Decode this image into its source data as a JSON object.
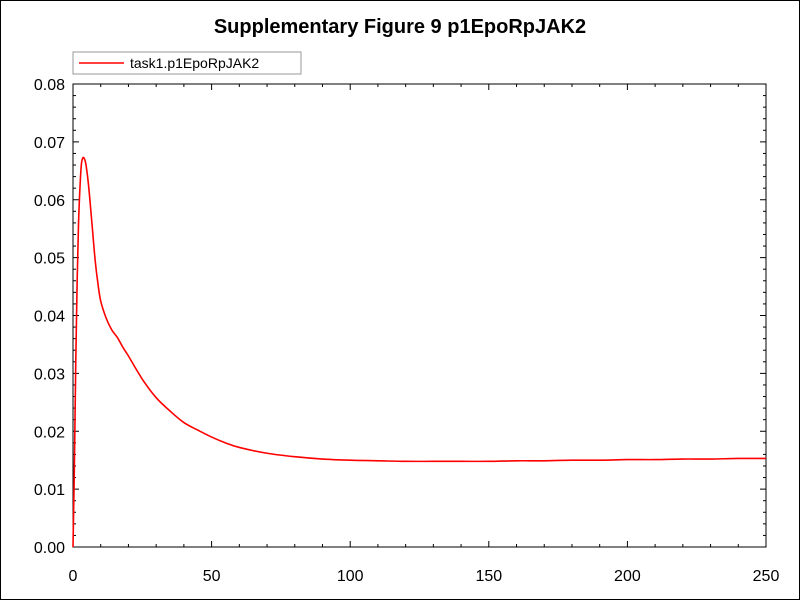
{
  "chart_data": {
    "type": "line",
    "title": "Supplementary Figure 9 p1EpoRpJAK2",
    "xlabel": "",
    "ylabel": "",
    "xlim": [
      0,
      250
    ],
    "ylim": [
      0,
      0.08
    ],
    "x_ticks": [
      "0",
      "50",
      "100",
      "150",
      "200",
      "250"
    ],
    "y_ticks": [
      "0.00",
      "0.01",
      "0.02",
      "0.03",
      "0.04",
      "0.05",
      "0.06",
      "0.07",
      "0.08"
    ],
    "grid": false,
    "legend_position": "top-left",
    "series": [
      {
        "name": "task1.p1EpoRpJAK2",
        "color": "#ff0000",
        "x": [
          0,
          0.5,
          1,
          1.5,
          2,
          2.5,
          3,
          3.5,
          4,
          4.5,
          5,
          5.5,
          6,
          7,
          8,
          9,
          10,
          12,
          14,
          16,
          18,
          20,
          25,
          30,
          35,
          40,
          45,
          50,
          55,
          60,
          70,
          80,
          90,
          100,
          110,
          120,
          130,
          140,
          150,
          160,
          170,
          180,
          190,
          200,
          210,
          220,
          230,
          240,
          250
        ],
        "y": [
          0,
          0.014,
          0.032,
          0.046,
          0.056,
          0.062,
          0.066,
          0.0672,
          0.0672,
          0.0665,
          0.065,
          0.063,
          0.0605,
          0.055,
          0.0495,
          0.0455,
          0.0425,
          0.0395,
          0.0375,
          0.0362,
          0.0345,
          0.033,
          0.029,
          0.0258,
          0.0235,
          0.0215,
          0.0202,
          0.019,
          0.018,
          0.0172,
          0.0162,
          0.0156,
          0.0152,
          0.015,
          0.0149,
          0.0148,
          0.0148,
          0.0148,
          0.0148,
          0.0149,
          0.0149,
          0.015,
          0.015,
          0.0151,
          0.0151,
          0.0152,
          0.0152,
          0.0153,
          0.0153
        ]
      }
    ]
  }
}
